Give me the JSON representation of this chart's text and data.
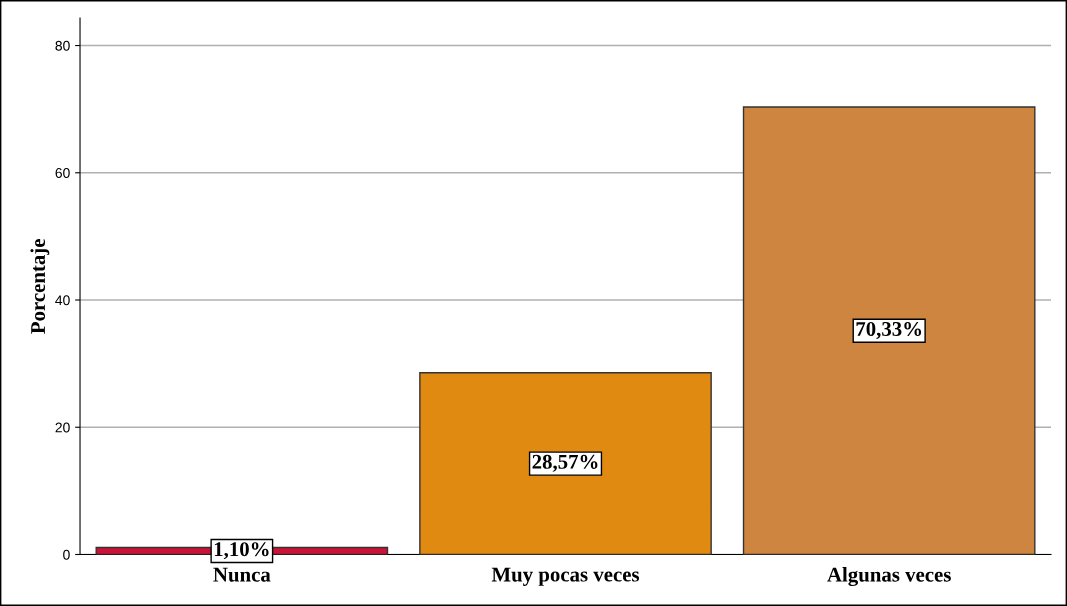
{
  "chart_data": {
    "type": "bar",
    "ylabel": "Porcentaje",
    "categories": [
      "Nunca",
      "Muy pocas veces",
      "Algunas veces"
    ],
    "values": [
      1.1,
      28.57,
      70.33
    ],
    "colors": [
      "#cc1236",
      "#e08a12",
      "#cd853f"
    ],
    "value_labels": [
      "1,10%",
      "28,57%",
      "70,33%"
    ],
    "ylim": [
      0,
      84.3
    ],
    "yticks": [
      0,
      20,
      40,
      60,
      80
    ],
    "grid": "y",
    "legend": false
  }
}
